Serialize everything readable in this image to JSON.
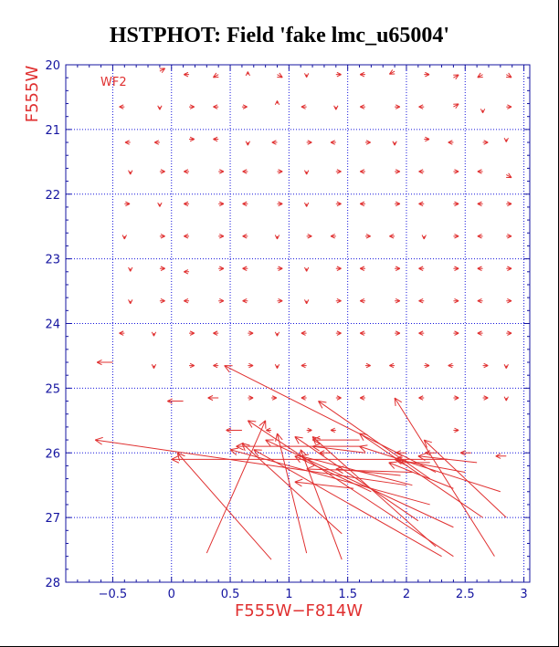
{
  "title": "HSTPHOT: Field 'fake lmc_u65004'",
  "chart_data": {
    "type": "vector-field",
    "xlabel": "F555W−F814W",
    "ylabel": "F555W",
    "panel_label": "WF2",
    "xlim": [
      -0.9,
      3.05
    ],
    "ylim": [
      28,
      20
    ],
    "y_inverted": true,
    "xticks": [
      "−0.5",
      "0",
      "0.5",
      "1",
      "1.5",
      "2",
      "2.5",
      "3"
    ],
    "yticks": [
      "20",
      "21",
      "22",
      "23",
      "24",
      "25",
      "26",
      "27",
      "28"
    ],
    "grid": true,
    "axis_color": "#1414a0",
    "grid_color": "#1414dc",
    "arrow_color": "#e03030",
    "small_marks": [
      [
        -0.1,
        20.1,
        0.05,
        -0.05
      ],
      [
        0.15,
        20.15,
        -0.05,
        0
      ],
      [
        0.4,
        20.15,
        -0.05,
        0.05
      ],
      [
        0.65,
        20.15,
        0,
        -0.05
      ],
      [
        0.9,
        20.15,
        0.05,
        0.05
      ],
      [
        1.15,
        20.15,
        0,
        0.05
      ],
      [
        1.4,
        20.15,
        0.05,
        0
      ],
      [
        1.65,
        20.15,
        -0.05,
        0
      ],
      [
        1.9,
        20.1,
        -0.05,
        0.05
      ],
      [
        2.15,
        20.15,
        0.05,
        0
      ],
      [
        2.4,
        20.2,
        0.05,
        -0.05
      ],
      [
        2.65,
        20.15,
        -0.05,
        0.05
      ],
      [
        2.85,
        20.15,
        0.05,
        0.05
      ],
      [
        -0.4,
        20.65,
        -0.05,
        0
      ],
      [
        -0.1,
        20.65,
        0,
        0.05
      ],
      [
        0.15,
        20.65,
        0.05,
        0
      ],
      [
        0.4,
        20.65,
        -0.05,
        0
      ],
      [
        0.6,
        20.65,
        0.05,
        0
      ],
      [
        0.9,
        20.6,
        0,
        -0.05
      ],
      [
        1.15,
        20.65,
        -0.05,
        0
      ],
      [
        1.4,
        20.65,
        0,
        0.05
      ],
      [
        1.65,
        20.65,
        -0.05,
        0
      ],
      [
        1.9,
        20.65,
        0.05,
        0
      ],
      [
        2.15,
        20.65,
        -0.05,
        0
      ],
      [
        2.4,
        20.65,
        0.05,
        -0.05
      ],
      [
        2.65,
        20.7,
        0,
        0.05
      ],
      [
        2.85,
        20.65,
        0.05,
        0
      ],
      [
        -0.35,
        21.2,
        -0.05,
        0
      ],
      [
        -0.1,
        21.2,
        -0.05,
        0
      ],
      [
        0.15,
        21.15,
        0.05,
        0
      ],
      [
        0.4,
        21.15,
        -0.05,
        0
      ],
      [
        0.65,
        21.2,
        0,
        0.05
      ],
      [
        0.9,
        21.2,
        -0.05,
        0
      ],
      [
        1.15,
        21.2,
        0.05,
        0
      ],
      [
        1.4,
        21.2,
        -0.05,
        0
      ],
      [
        1.65,
        21.2,
        0.05,
        0
      ],
      [
        1.9,
        21.2,
        0,
        0.05
      ],
      [
        2.15,
        21.15,
        0.05,
        0
      ],
      [
        2.4,
        21.2,
        -0.05,
        0
      ],
      [
        2.65,
        21.2,
        0.05,
        0
      ],
      [
        2.85,
        21.15,
        0,
        0.05
      ],
      [
        -0.35,
        21.65,
        0,
        0.05
      ],
      [
        -0.1,
        21.65,
        0.05,
        0
      ],
      [
        0.15,
        21.65,
        -0.05,
        0
      ],
      [
        0.4,
        21.65,
        0.05,
        0
      ],
      [
        0.65,
        21.65,
        -0.05,
        0
      ],
      [
        0.9,
        21.65,
        0.05,
        0
      ],
      [
        1.15,
        21.65,
        0,
        0.05
      ],
      [
        1.4,
        21.65,
        0.05,
        0
      ],
      [
        1.65,
        21.65,
        -0.05,
        0
      ],
      [
        1.9,
        21.65,
        0.05,
        0
      ],
      [
        2.15,
        21.65,
        -0.05,
        0
      ],
      [
        2.4,
        21.65,
        0.05,
        0
      ],
      [
        2.65,
        21.65,
        -0.05,
        0
      ],
      [
        2.85,
        21.7,
        0.05,
        0.05
      ],
      [
        -0.4,
        22.15,
        0.05,
        0
      ],
      [
        -0.1,
        22.15,
        0,
        0.05
      ],
      [
        0.15,
        22.15,
        -0.05,
        0
      ],
      [
        0.4,
        22.15,
        0.05,
        0
      ],
      [
        0.65,
        22.15,
        -0.05,
        0
      ],
      [
        0.9,
        22.15,
        0.05,
        0
      ],
      [
        1.15,
        22.15,
        0,
        0.05
      ],
      [
        1.4,
        22.15,
        0.05,
        0
      ],
      [
        1.65,
        22.15,
        -0.05,
        0
      ],
      [
        1.9,
        22.15,
        0.05,
        0
      ],
      [
        2.15,
        22.15,
        -0.05,
        0
      ],
      [
        2.4,
        22.15,
        0.05,
        0
      ],
      [
        2.65,
        22.15,
        -0.05,
        0
      ],
      [
        2.85,
        22.15,
        0.05,
        0
      ],
      [
        -0.4,
        22.65,
        0,
        0.05
      ],
      [
        -0.1,
        22.65,
        0.05,
        0
      ],
      [
        0.15,
        22.65,
        -0.05,
        0
      ],
      [
        0.4,
        22.65,
        0.05,
        0
      ],
      [
        0.65,
        22.65,
        -0.05,
        0
      ],
      [
        0.9,
        22.65,
        0,
        0.05
      ],
      [
        1.15,
        22.65,
        0.05,
        0
      ],
      [
        1.4,
        22.65,
        -0.05,
        0
      ],
      [
        1.65,
        22.65,
        0.05,
        0
      ],
      [
        1.9,
        22.65,
        -0.05,
        0
      ],
      [
        2.15,
        22.65,
        0,
        0.05
      ],
      [
        2.4,
        22.65,
        0.05,
        0
      ],
      [
        2.65,
        22.65,
        -0.05,
        0
      ],
      [
        2.85,
        22.65,
        0.05,
        0
      ],
      [
        -0.35,
        23.15,
        0,
        0.05
      ],
      [
        -0.1,
        23.15,
        0.05,
        0
      ],
      [
        0.15,
        23.2,
        -0.05,
        0
      ],
      [
        0.4,
        23.15,
        0.05,
        0
      ],
      [
        0.65,
        23.15,
        -0.05,
        0
      ],
      [
        0.9,
        23.15,
        0.05,
        0
      ],
      [
        1.15,
        23.15,
        0,
        0.05
      ],
      [
        1.4,
        23.15,
        0.05,
        0
      ],
      [
        1.65,
        23.15,
        -0.05,
        0
      ],
      [
        1.9,
        23.15,
        0.05,
        0
      ],
      [
        2.15,
        23.15,
        -0.05,
        0
      ],
      [
        2.4,
        23.15,
        0.05,
        0
      ],
      [
        2.65,
        23.15,
        -0.05,
        0
      ],
      [
        2.85,
        23.15,
        0.05,
        0
      ],
      [
        -0.35,
        23.65,
        0,
        0.05
      ],
      [
        -0.1,
        23.65,
        0.05,
        0
      ],
      [
        0.15,
        23.65,
        -0.05,
        0
      ],
      [
        0.4,
        23.65,
        0.05,
        0
      ],
      [
        0.65,
        23.65,
        -0.05,
        0
      ],
      [
        0.9,
        23.65,
        0.05,
        0
      ],
      [
        1.15,
        23.65,
        0,
        0.05
      ],
      [
        1.4,
        23.65,
        0.05,
        0
      ],
      [
        1.65,
        23.65,
        -0.05,
        0
      ],
      [
        1.9,
        23.65,
        0.05,
        0
      ],
      [
        2.15,
        23.65,
        -0.05,
        0
      ],
      [
        2.4,
        23.65,
        0.05,
        0
      ],
      [
        2.65,
        23.65,
        -0.05,
        0
      ],
      [
        2.85,
        23.65,
        0.05,
        0
      ],
      [
        -0.4,
        24.15,
        -0.05,
        0
      ],
      [
        -0.15,
        24.15,
        0,
        0.05
      ],
      [
        0.15,
        24.15,
        0.05,
        0
      ],
      [
        0.4,
        24.15,
        -0.05,
        0
      ],
      [
        0.65,
        24.15,
        0.05,
        0
      ],
      [
        0.9,
        24.15,
        0,
        0.05
      ],
      [
        1.15,
        24.15,
        -0.05,
        0
      ],
      [
        1.4,
        24.15,
        0.05,
        0
      ],
      [
        1.65,
        24.15,
        -0.05,
        0
      ],
      [
        1.9,
        24.15,
        0.05,
        0
      ],
      [
        2.15,
        24.15,
        -0.05,
        0
      ],
      [
        2.4,
        24.15,
        0.05,
        0
      ],
      [
        2.65,
        24.15,
        -0.05,
        0
      ],
      [
        2.85,
        24.15,
        0.05,
        0
      ],
      [
        -0.5,
        24.6,
        -0.15,
        0
      ],
      [
        -0.15,
        24.65,
        0,
        0.05
      ],
      [
        0.15,
        24.65,
        0.05,
        0
      ],
      [
        0.4,
        24.65,
        -0.05,
        0
      ],
      [
        0.65,
        24.65,
        0.05,
        0
      ],
      [
        0.9,
        24.65,
        0,
        0.05
      ],
      [
        1.15,
        24.65,
        -0.05,
        0
      ],
      [
        1.65,
        24.65,
        0.05,
        0
      ],
      [
        1.9,
        24.65,
        -0.05,
        0
      ],
      [
        2.15,
        24.65,
        0.05,
        0
      ],
      [
        2.4,
        24.65,
        -0.05,
        0
      ],
      [
        2.65,
        24.65,
        0.05,
        0
      ],
      [
        2.85,
        24.65,
        0,
        0.05
      ],
      [
        0.1,
        25.2,
        -0.15,
        0
      ],
      [
        0.4,
        25.15,
        -0.1,
        0
      ],
      [
        0.65,
        25.15,
        0.05,
        0
      ],
      [
        0.85,
        25.15,
        0.05,
        0
      ],
      [
        1.15,
        25.15,
        -0.05,
        0
      ],
      [
        1.4,
        25.15,
        0.05,
        0
      ],
      [
        1.65,
        25.15,
        -0.05,
        0
      ],
      [
        2.15,
        25.15,
        -0.05,
        0
      ],
      [
        2.4,
        25.15,
        0.05,
        0
      ],
      [
        2.65,
        25.15,
        0.05,
        0
      ],
      [
        2.85,
        25.15,
        0,
        0.05
      ],
      [
        0.6,
        25.65,
        -0.15,
        0
      ],
      [
        0.85,
        25.65,
        -0.05,
        0
      ],
      [
        1.15,
        25.65,
        0.05,
        0
      ],
      [
        1.4,
        25.65,
        -0.05,
        0
      ],
      [
        2.4,
        25.65,
        0.05,
        0
      ],
      [
        1.35,
        26.0,
        -0.1,
        0
      ],
      [
        2.0,
        26.0,
        -0.1,
        0
      ],
      [
        2.25,
        26.0,
        -0.1,
        0
      ],
      [
        2.55,
        26.0,
        -0.1,
        0
      ],
      [
        2.85,
        26.05,
        -0.1,
        0
      ]
    ],
    "long_arrows": [
      [
        2.0,
        26.5,
        -2.65,
        -0.7
      ],
      [
        1.95,
        26.1,
        -1.95,
        0
      ],
      [
        2.4,
        27.6,
        -1.75,
        -2.1
      ],
      [
        1.6,
        25.9,
        -1.05,
        0
      ],
      [
        2.25,
        26.3,
        -1.8,
        -1.65
      ],
      [
        1.6,
        25.8,
        -0.4,
        0
      ],
      [
        2.2,
        26.4,
        -0.95,
        -1.2
      ],
      [
        2.3,
        27.6,
        -1.6,
        -1.65
      ],
      [
        1.45,
        27.25,
        -0.85,
        -1.4
      ],
      [
        0.85,
        27.65,
        -0.8,
        -1.65
      ],
      [
        0.3,
        27.55,
        0.5,
        -2.05
      ],
      [
        1.15,
        27.55,
        -0.25,
        -1.85
      ],
      [
        1.45,
        27.65,
        -0.35,
        -1.7
      ],
      [
        2.65,
        27.0,
        -1.05,
        -1.3
      ],
      [
        2.8,
        26.6,
        -1.2,
        -0.7
      ],
      [
        2.1,
        27.05,
        -1.05,
        -1.3
      ],
      [
        2.05,
        26.5,
        -0.95,
        -0.45
      ],
      [
        2.25,
        27.45,
        -1.05,
        -1.7
      ],
      [
        1.7,
        26.6,
        -0.65,
        -0.55
      ],
      [
        2.5,
        26.3,
        -0.6,
        -0.2
      ],
      [
        2.6,
        26.15,
        -0.5,
        -0.1
      ],
      [
        2.75,
        27.6,
        -0.85,
        -2.45
      ],
      [
        2.4,
        26.55,
        -0.55,
        -0.4
      ],
      [
        2.2,
        26.15,
        -0.25,
        0
      ],
      [
        2.85,
        27.0,
        -0.7,
        -1.2
      ],
      [
        1.95,
        26.35,
        -0.55,
        -0.1
      ],
      [
        2.35,
        26.1,
        -0.45,
        0
      ],
      [
        2.4,
        27.15,
        -1.6,
        -1.35
      ],
      [
        2.2,
        26.8,
        -1.7,
        -0.85
      ],
      [
        1.55,
        26.55,
        -0.5,
        -0.1
      ],
      [
        2.05,
        26.3,
        -0.9,
        -0.05
      ],
      [
        1.65,
        26.0,
        -0.45,
        -0.1
      ]
    ]
  }
}
